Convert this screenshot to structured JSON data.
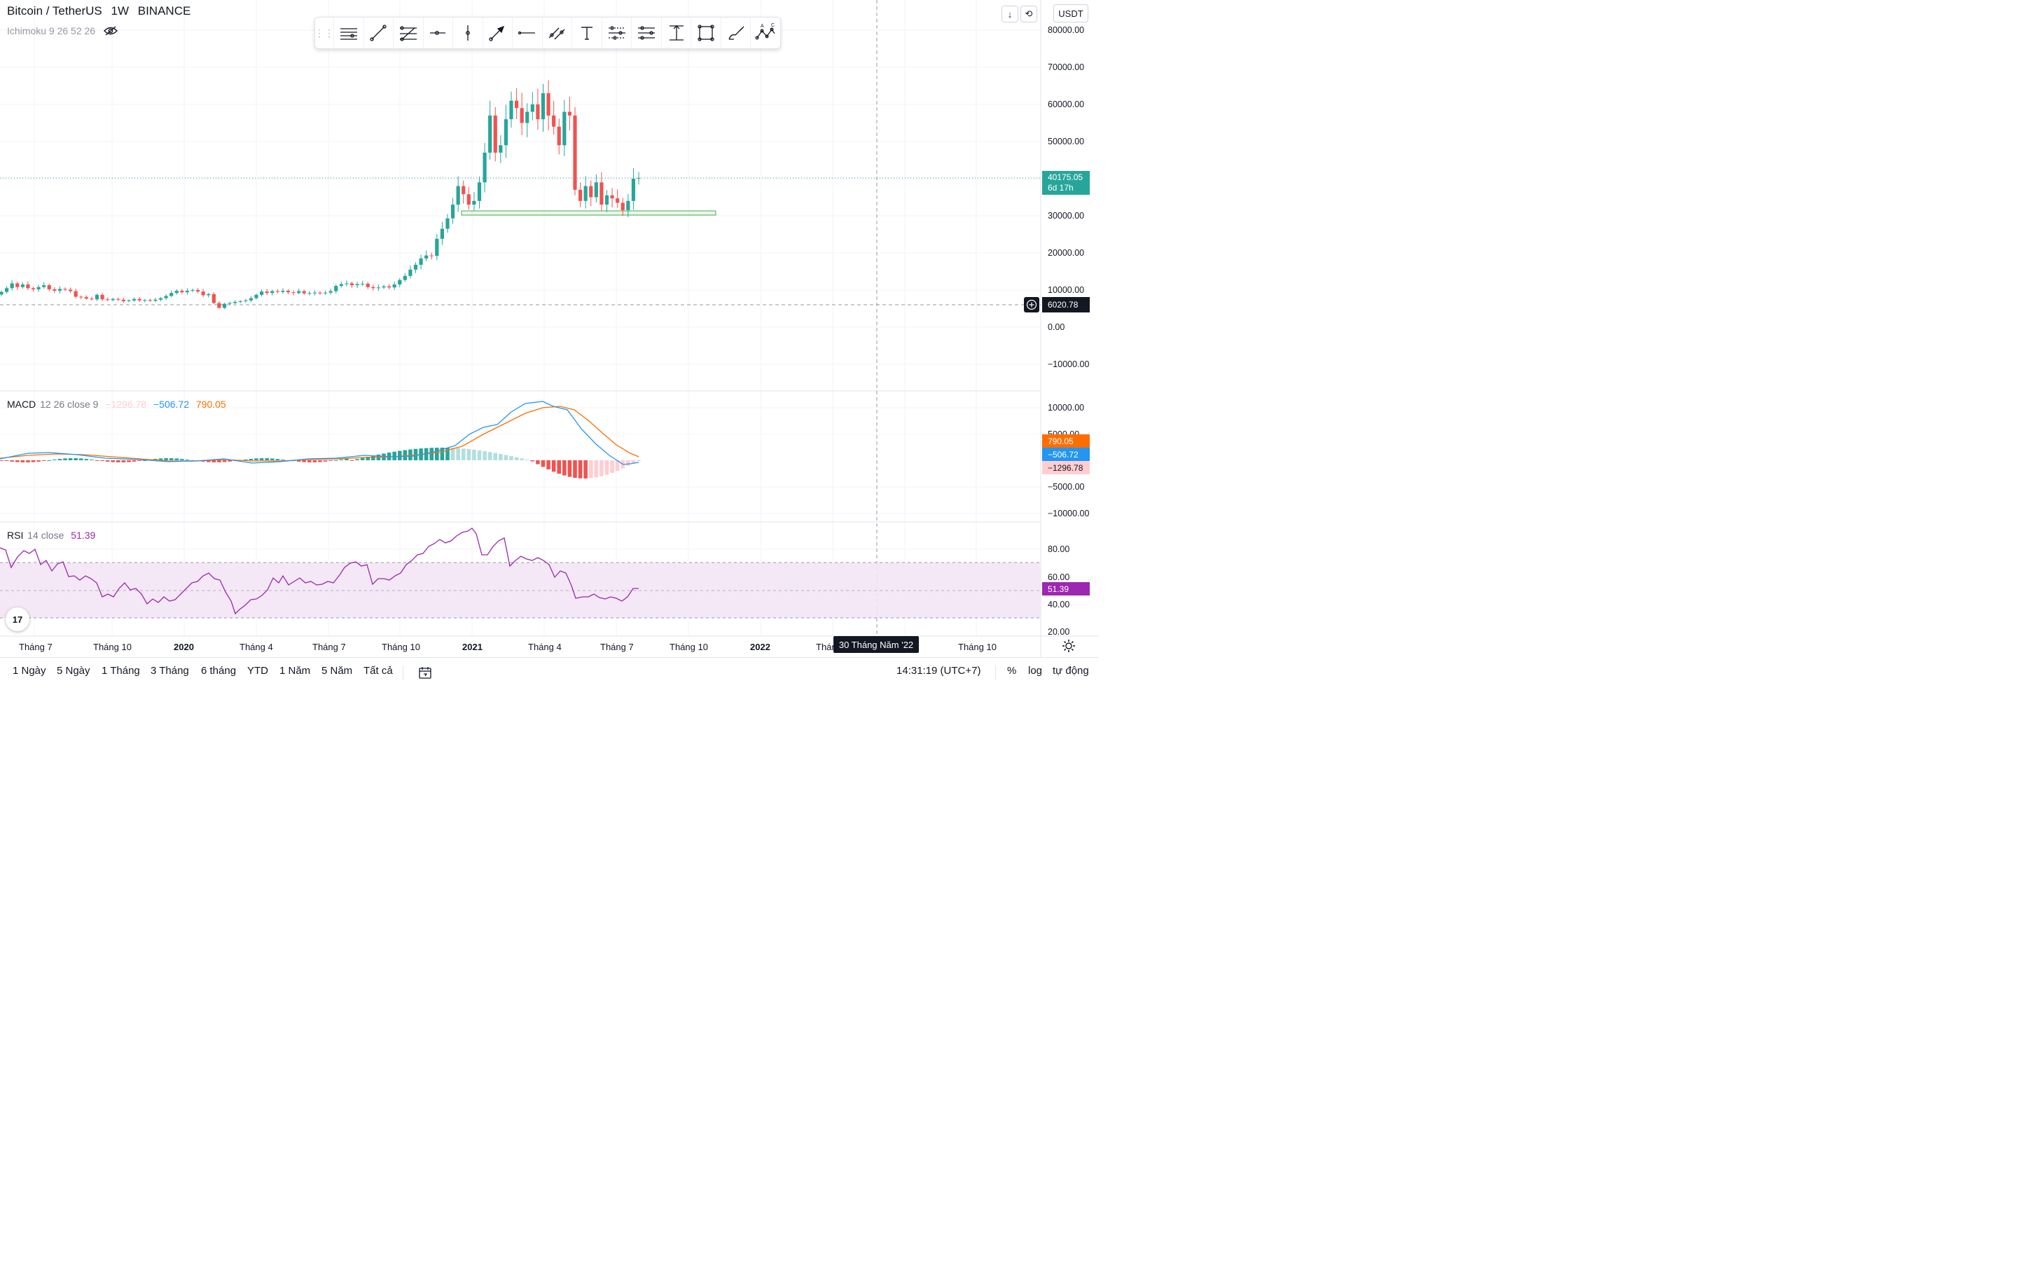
{
  "header": {
    "symbol": "Bitcoin / TetherUS",
    "interval": "1W",
    "exchange": "BINANCE",
    "indicator": "Ichimoku 9 26 52 26",
    "currency": "USDT"
  },
  "macd": {
    "name": "MACD",
    "params": "12 26 close 9",
    "hist": "−1296.78",
    "macd": "−506.72",
    "signal": "790.05",
    "tag_signal": "790.05",
    "tag_macd": "−506.72",
    "tag_hist": "−1296.78",
    "axis": [
      "10000.00",
      "5000.00",
      "−5000.00",
      "−10000.00"
    ]
  },
  "rsi": {
    "name": "RSI",
    "params": "14 close",
    "value": "51.39",
    "tag": "51.39",
    "axis": [
      "80.00",
      "60.00",
      "40.00",
      "20.00"
    ]
  },
  "price_axis": [
    "80000.00",
    "70000.00",
    "60000.00",
    "50000.00",
    "30000.00",
    "20000.00",
    "10000.00",
    "0.00",
    "−10000.00"
  ],
  "last_price": {
    "price": "40175.05",
    "countdown": "6d 17h"
  },
  "crosshair_price": "6020.78",
  "time_axis": [
    "Tháng 7",
    "Tháng 10",
    "2020",
    "Tháng 4",
    "Tháng 7",
    "Tháng 10",
    "2021",
    "Tháng 4",
    "Tháng 7",
    "Tháng 10",
    "2022",
    "Thán",
    "Tháng 10"
  ],
  "crosshair_date": "30 Tháng Năm '22",
  "range_buttons": [
    "1 Ngày",
    "5 Ngày",
    "1 Tháng",
    "3 Tháng",
    "6 tháng",
    "YTD",
    "1 Năm",
    "5 Năm",
    "Tất cả"
  ],
  "bottom_right": {
    "time": "14:31:19 (UTC+7)",
    "percent": "%",
    "log": "log",
    "auto": "tự động"
  },
  "logo_text": "17",
  "colors": {
    "up": "#26a69a",
    "down": "#ef5350",
    "macd": "#2196f3",
    "signal": "#ff6d00",
    "rsi": "#9c27b0",
    "rsi_band": "#f3e5f5"
  },
  "toolbar_icons": [
    "horizontal-lines-icon",
    "trend-line-icon",
    "fib-retracement-icon",
    "horizontal-ray-icon",
    "vertical-line-icon",
    "arrow-icon",
    "horizontal-line-icon",
    "parallel-channel-icon",
    "text-icon",
    "fib-channel-icon",
    "gann-icon",
    "price-range-icon",
    "rectangle-icon",
    "brush-icon",
    "abcd-pattern-icon"
  ],
  "chart_data": {
    "type": "candlestick",
    "series": [
      {
        "name": "weekly",
        "o": [
          6000,
          6900,
          6400,
          6200,
          6300,
          6200,
          6150,
          6400
        ],
        "c": [
          6900,
          6400,
          6200,
          6300,
          6200,
          6150,
          6400,
          6350
        ]
      }
    ],
    "support_zone": [
      30000,
      31500
    ]
  }
}
